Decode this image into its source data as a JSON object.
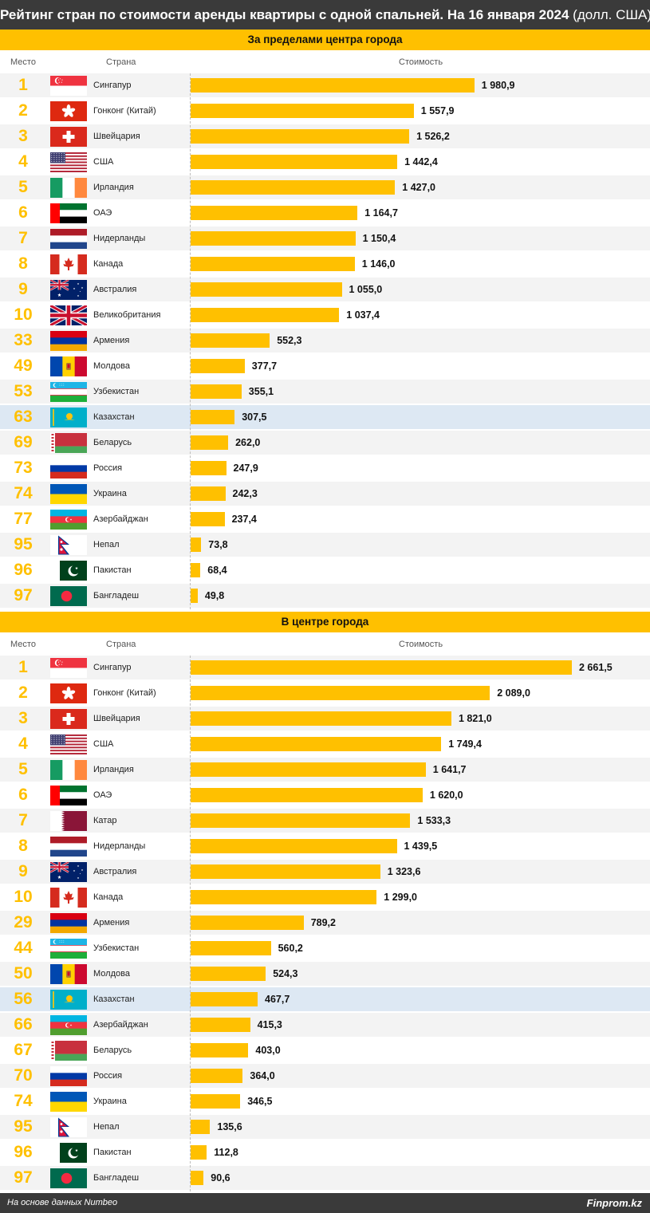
{
  "title_bold": "Рейтинг стран по стоимости аренды квартиры с одной спальней. На 16 января 2024",
  "title_unit": "(долл. США)",
  "col_rank": "Место",
  "col_country": "Страна",
  "col_cost": "Стоимость",
  "footer_source": "На основе данных Numbeo",
  "footer_brand": "Finprom.kz",
  "colors": {
    "accent": "#ffc000",
    "dark": "#3a3a3a",
    "highlight": "#dde8f3",
    "stripe": "#f3f3f3"
  },
  "chart_data": [
    {
      "type": "bar",
      "title": "За пределами центра города",
      "xlim": [
        0,
        2661.5
      ],
      "rows": [
        {
          "rank": "1",
          "country": "Сингапур",
          "flag": "sg",
          "value": 1980.9,
          "label": "1 980,9"
        },
        {
          "rank": "2",
          "country": "Гонконг (Китай)",
          "flag": "hk",
          "value": 1557.9,
          "label": "1 557,9"
        },
        {
          "rank": "3",
          "country": "Швейцария",
          "flag": "ch",
          "value": 1526.2,
          "label": "1 526,2"
        },
        {
          "rank": "4",
          "country": "США",
          "flag": "us",
          "value": 1442.4,
          "label": "1 442,4"
        },
        {
          "rank": "5",
          "country": "Ирландия",
          "flag": "ie",
          "value": 1427.0,
          "label": "1 427,0"
        },
        {
          "rank": "6",
          "country": "ОАЭ",
          "flag": "ae",
          "value": 1164.7,
          "label": "1 164,7"
        },
        {
          "rank": "7",
          "country": "Нидерланды",
          "flag": "nl",
          "value": 1150.4,
          "label": "1 150,4"
        },
        {
          "rank": "8",
          "country": "Канада",
          "flag": "ca",
          "value": 1146.0,
          "label": "1 146,0"
        },
        {
          "rank": "9",
          "country": "Австралия",
          "flag": "au",
          "value": 1055.0,
          "label": "1 055,0"
        },
        {
          "rank": "10",
          "country": "Великобритания",
          "flag": "gb",
          "value": 1037.4,
          "label": "1 037,4"
        },
        {
          "rank": "33",
          "country": "Армения",
          "flag": "am",
          "value": 552.3,
          "label": "552,3"
        },
        {
          "rank": "49",
          "country": "Молдова",
          "flag": "md",
          "value": 377.7,
          "label": "377,7"
        },
        {
          "rank": "53",
          "country": "Узбекистан",
          "flag": "uz",
          "value": 355.1,
          "label": "355,1"
        },
        {
          "rank": "63",
          "country": "Казахстан",
          "flag": "kz",
          "value": 307.5,
          "label": "307,5",
          "highlight": true
        },
        {
          "rank": "69",
          "country": "Беларусь",
          "flag": "by",
          "value": 262.0,
          "label": "262,0"
        },
        {
          "rank": "73",
          "country": "Россия",
          "flag": "ru",
          "value": 247.9,
          "label": "247,9"
        },
        {
          "rank": "74",
          "country": "Украина",
          "flag": "ua",
          "value": 242.3,
          "label": "242,3"
        },
        {
          "rank": "77",
          "country": "Азербайджан",
          "flag": "az",
          "value": 237.4,
          "label": "237,4"
        },
        {
          "rank": "95",
          "country": "Непал",
          "flag": "np",
          "value": 73.8,
          "label": "73,8"
        },
        {
          "rank": "96",
          "country": "Пакистан",
          "flag": "pk",
          "value": 68.4,
          "label": "68,4"
        },
        {
          "rank": "97",
          "country": "Бангладеш",
          "flag": "bd",
          "value": 49.8,
          "label": "49,8"
        }
      ]
    },
    {
      "type": "bar",
      "title": "В центре города",
      "xlim": [
        0,
        2661.5
      ],
      "rows": [
        {
          "rank": "1",
          "country": "Сингапур",
          "flag": "sg",
          "value": 2661.5,
          "label": "2 661,5"
        },
        {
          "rank": "2",
          "country": "Гонконг (Китай)",
          "flag": "hk",
          "value": 2089.0,
          "label": "2 089,0"
        },
        {
          "rank": "3",
          "country": "Швейцария",
          "flag": "ch",
          "value": 1821.0,
          "label": "1 821,0"
        },
        {
          "rank": "4",
          "country": "США",
          "flag": "us",
          "value": 1749.4,
          "label": "1 749,4"
        },
        {
          "rank": "5",
          "country": "Ирландия",
          "flag": "ie",
          "value": 1641.7,
          "label": "1 641,7"
        },
        {
          "rank": "6",
          "country": "ОАЭ",
          "flag": "ae",
          "value": 1620.0,
          "label": "1 620,0"
        },
        {
          "rank": "7",
          "country": "Катар",
          "flag": "qa",
          "value": 1533.3,
          "label": "1 533,3"
        },
        {
          "rank": "8",
          "country": "Нидерланды",
          "flag": "nl",
          "value": 1439.5,
          "label": "1 439,5"
        },
        {
          "rank": "9",
          "country": "Австралия",
          "flag": "au",
          "value": 1323.6,
          "label": "1 323,6"
        },
        {
          "rank": "10",
          "country": "Канада",
          "flag": "ca",
          "value": 1299.0,
          "label": "1 299,0"
        },
        {
          "rank": "29",
          "country": "Армения",
          "flag": "am",
          "value": 789.2,
          "label": "789,2"
        },
        {
          "rank": "44",
          "country": "Узбекистан",
          "flag": "uz",
          "value": 560.2,
          "label": "560,2"
        },
        {
          "rank": "50",
          "country": "Молдова",
          "flag": "md",
          "value": 524.3,
          "label": "524,3"
        },
        {
          "rank": "56",
          "country": "Казахстан",
          "flag": "kz",
          "value": 467.7,
          "label": "467,7",
          "highlight": true
        },
        {
          "rank": "66",
          "country": "Азербайджан",
          "flag": "az",
          "value": 415.3,
          "label": "415,3"
        },
        {
          "rank": "67",
          "country": "Беларусь",
          "flag": "by",
          "value": 403.0,
          "label": "403,0"
        },
        {
          "rank": "70",
          "country": "Россия",
          "flag": "ru",
          "value": 364.0,
          "label": "364,0"
        },
        {
          "rank": "74",
          "country": "Украина",
          "flag": "ua",
          "value": 346.5,
          "label": "346,5"
        },
        {
          "rank": "95",
          "country": "Непал",
          "flag": "np",
          "value": 135.6,
          "label": "135,6"
        },
        {
          "rank": "96",
          "country": "Пакистан",
          "flag": "pk",
          "value": 112.8,
          "label": "112,8"
        },
        {
          "rank": "97",
          "country": "Бангладеш",
          "flag": "bd",
          "value": 90.6,
          "label": "90,6"
        }
      ]
    }
  ]
}
